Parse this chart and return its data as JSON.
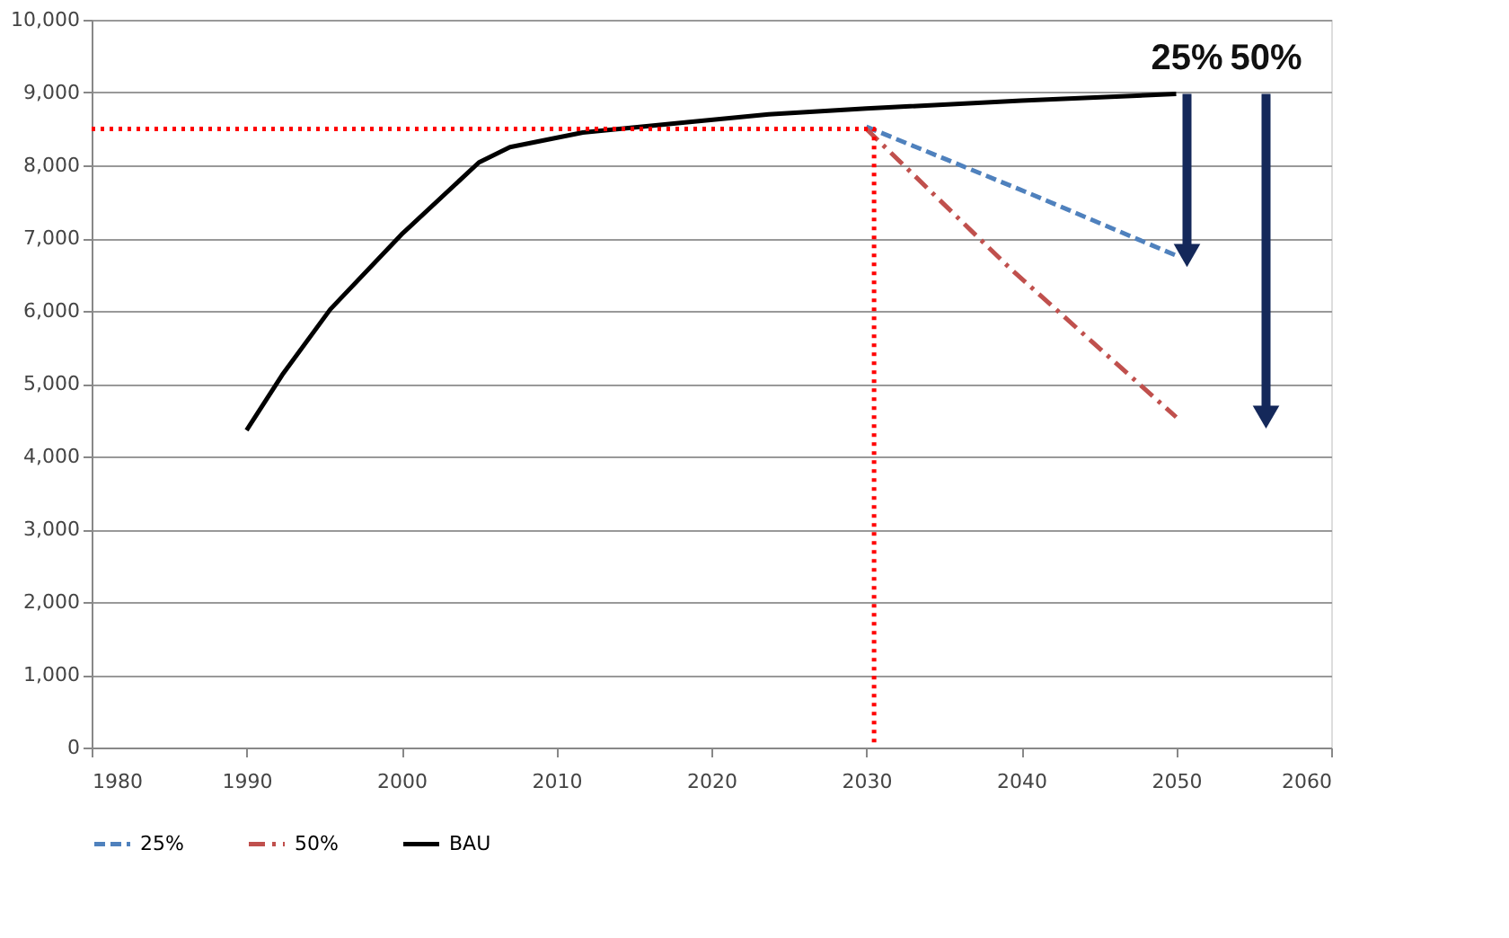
{
  "chart_data": {
    "type": "line",
    "xlim": [
      1980,
      2060
    ],
    "xticks": [
      1980,
      1990,
      2000,
      2010,
      2020,
      2030,
      2040,
      2050,
      2060
    ],
    "ylim": [
      0,
      10000
    ],
    "yticks": [
      {
        "value": 0,
        "label": "0"
      },
      {
        "value": 1000,
        "label": "1,000"
      },
      {
        "value": 2000,
        "label": "2,000"
      },
      {
        "value": 3000,
        "label": "3,000"
      },
      {
        "value": 4000,
        "label": "4,000"
      },
      {
        "value": 5000,
        "label": "5,000"
      },
      {
        "value": 6000,
        "label": "6,000"
      },
      {
        "value": 7000,
        "label": "7,000"
      },
      {
        "value": 8000,
        "label": "8,000"
      },
      {
        "value": 9000,
        "label": "9,000"
      },
      {
        "value": 10000,
        "label": "10,000"
      }
    ],
    "grid": "y",
    "legend": "bottom",
    "series": [
      {
        "name": "25%",
        "color": "#4f81bd",
        "line_style": "dashed",
        "x": [
          2030,
          2040.8,
          2050
        ],
        "values": [
          8530,
          7590,
          6760
        ]
      },
      {
        "name": "50%",
        "color": "#c0504d",
        "line_style": "dashdot",
        "x": [
          2030,
          2039.2,
          2050
        ],
        "values": [
          8500,
          6600,
          4540
        ]
      },
      {
        "name": "BAU",
        "color": "#000000",
        "line_style": "solid",
        "x": [
          1990,
          1992.3,
          1995.4,
          2000,
          2005,
          2007,
          2011.7,
          2018.3,
          2023.7,
          2030,
          2040,
          2050
        ],
        "values": [
          4360,
          5120,
          6020,
          7050,
          8040,
          8250,
          8450,
          8590,
          8700,
          8780,
          8890,
          8980
        ]
      },
      {
        "color": "#ff0000",
        "line_style": "dotted",
        "x": [
          1980,
          2030.5,
          2030.5
        ],
        "values": [
          8500,
          8500,
          0
        ]
      }
    ],
    "annotations": [
      "25%",
      "50%"
    ]
  }
}
